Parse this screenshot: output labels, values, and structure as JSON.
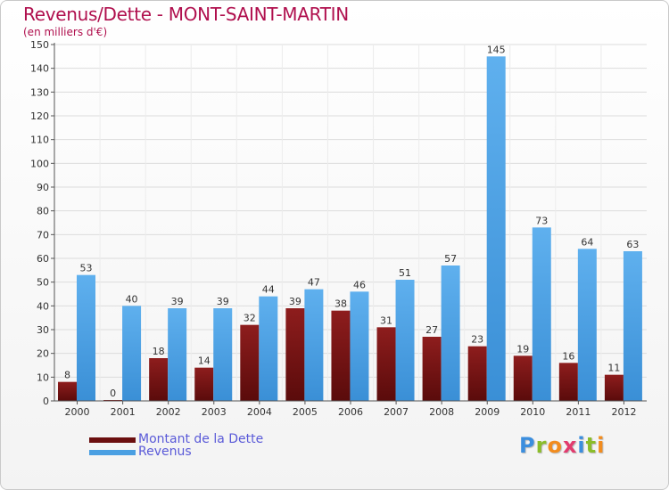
{
  "header": {
    "title": "Revenus/Dette - MONT-SAINT-MARTIN",
    "subtitle": "(en milliers d'€)"
  },
  "chart_data": {
    "type": "bar",
    "title": "Revenus/Dette - MONT-SAINT-MARTIN",
    "ylabel": "(en milliers d'€)",
    "xlabel": "",
    "ylim": [
      0,
      150
    ],
    "ytick_step": 10,
    "grid": true,
    "categories": [
      "2000",
      "2001",
      "2002",
      "2003",
      "2004",
      "2005",
      "2006",
      "2007",
      "2008",
      "2009",
      "2010",
      "2011",
      "2012"
    ],
    "series": [
      {
        "name": "Montant de la Dette",
        "color": "#7a1212",
        "values": [
          8,
          0,
          18,
          14,
          32,
          39,
          38,
          31,
          27,
          23,
          19,
          16,
          11
        ]
      },
      {
        "name": "Revenus",
        "color": "#4a9fe2",
        "values": [
          53,
          40,
          39,
          39,
          44,
          47,
          46,
          51,
          57,
          145,
          73,
          64,
          63
        ]
      }
    ],
    "legend": "bottom-left"
  },
  "legend": {
    "items": [
      {
        "label": "Montant de la Dette",
        "color": "#6b0f0f"
      },
      {
        "label": "Revenus",
        "color": "#4a9fe2"
      }
    ]
  },
  "brand": {
    "letters": [
      "P",
      "r",
      "o",
      "x",
      "i",
      "t",
      "i"
    ],
    "colors": [
      "#3b8ede",
      "#8bbd2a",
      "#f28c1e",
      "#e23b6e",
      "#3b8ede",
      "#8bbd2a",
      "#f28c1e"
    ]
  }
}
